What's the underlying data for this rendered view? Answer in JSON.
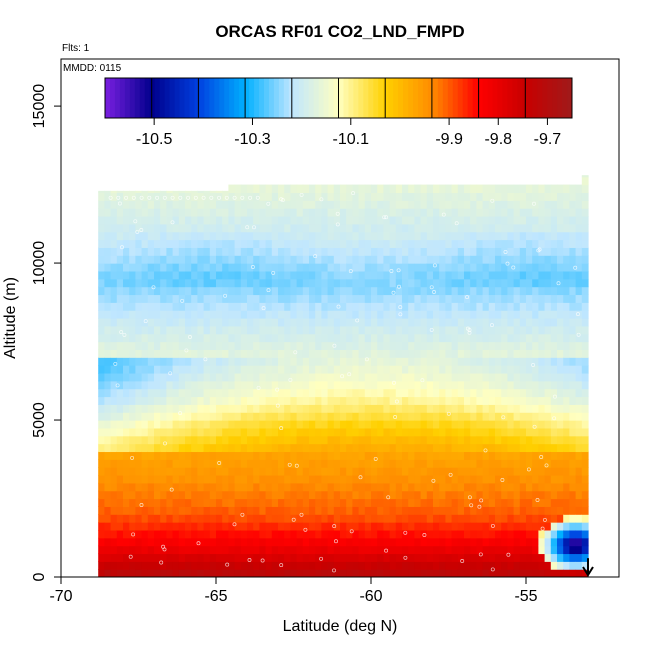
{
  "chart_data": {
    "type": "heatmap",
    "title": "ORCAS RF01 CO2_LND_FMPD",
    "subtitle_flights": "Flts: 1",
    "subtitle_date": "MMDD: 0115",
    "xlabel": "Latitude (deg N)",
    "ylabel": "Altitude (m)",
    "xlim": [
      -70,
      -52
    ],
    "ylim": [
      0,
      16500
    ],
    "x_ticks": [
      -70,
      -65,
      -60,
      -55
    ],
    "x_tick_labels": [
      "-70",
      "-65",
      "-60",
      "-55"
    ],
    "y_ticks": [
      0,
      5000,
      10000,
      15000
    ],
    "y_tick_labels": [
      "0",
      "5000",
      "10000",
      "15000"
    ],
    "colorbar": {
      "range": [
        -10.6,
        -9.65
      ],
      "ticks": [
        -10.5,
        -10.3,
        -10.1,
        -9.9,
        -9.8,
        -9.7
      ],
      "tick_labels": [
        "-10.5",
        "-10.3",
        "-10.1",
        "-9.9",
        "-9.8",
        "-9.7"
      ],
      "colors": [
        "#7a1fe0",
        "#00008c",
        "#0040e0",
        "#00b0ff",
        "#bfe6ff",
        "#ffffc0",
        "#ffd000",
        "#ff8c00",
        "#ff0000",
        "#c80000",
        "#a01a1a"
      ]
    },
    "field": {
      "lat_range": [
        -68.8,
        -53.0
      ],
      "alt_range": [
        0,
        12500
      ],
      "profile_alt_m": [
        0,
        500,
        1000,
        1500,
        2000,
        3000,
        4000,
        4800,
        5600,
        6500,
        8000,
        9500,
        11000,
        12500
      ],
      "profile_value": [
        -9.7,
        -9.76,
        -9.82,
        -9.86,
        -9.9,
        -9.94,
        -9.97,
        -10.03,
        -10.1,
        -10.15,
        -10.2,
        -10.26,
        -10.2,
        -10.16
      ]
    },
    "flight_track": {
      "description_note": "",
      "arrow_lat": -53.0,
      "arrow_alt_m": 600
    }
  }
}
